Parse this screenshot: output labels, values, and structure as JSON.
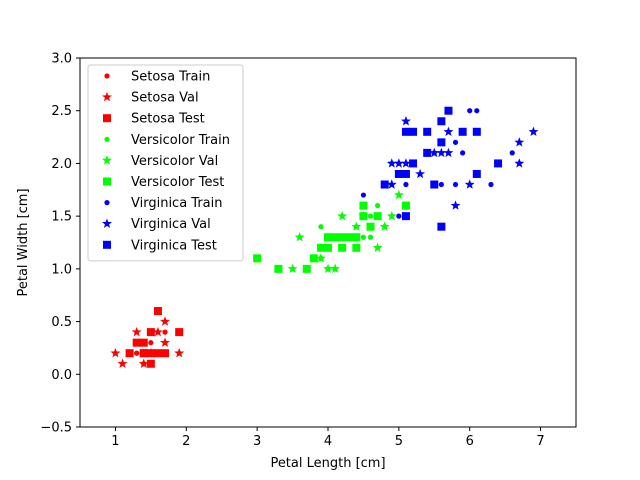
{
  "chart_data": {
    "type": "scatter",
    "title": "",
    "xlabel": "Petal Length [cm]",
    "ylabel": "Petal Width [cm]",
    "xlim": [
      0.5,
      7.5
    ],
    "ylim": [
      -0.5,
      3.0
    ],
    "xticks": [
      1,
      2,
      3,
      4,
      5,
      6,
      7
    ],
    "xtick_labels": [
      "1",
      "2",
      "3",
      "4",
      "5",
      "6",
      "7"
    ],
    "yticks": [
      -0.5,
      0.0,
      0.5,
      1.0,
      1.5,
      2.0,
      2.5,
      3.0
    ],
    "ytick_labels": [
      "−0.5",
      "0.0",
      "0.5",
      "1.0",
      "1.5",
      "2.0",
      "2.5",
      "3.0"
    ],
    "grid": false,
    "legend_position": "top-left",
    "series": [
      {
        "name": "Setosa Train",
        "marker": "circle",
        "color": "#ff0000",
        "points": [
          [
            1.4,
            0.2
          ],
          [
            1.3,
            0.2
          ],
          [
            1.5,
            0.2
          ],
          [
            1.4,
            0.3
          ],
          [
            1.5,
            0.1
          ],
          [
            1.6,
            0.2
          ],
          [
            1.4,
            0.1
          ],
          [
            1.2,
            0.2
          ],
          [
            1.3,
            0.3
          ],
          [
            1.7,
            0.4
          ],
          [
            1.5,
            0.4
          ],
          [
            1.6,
            0.2
          ],
          [
            1.4,
            0.2
          ],
          [
            1.5,
            0.3
          ],
          [
            1.3,
            0.2
          ]
        ]
      },
      {
        "name": "Setosa Val",
        "marker": "star",
        "color": "#ff0000",
        "points": [
          [
            1.0,
            0.2
          ],
          [
            1.1,
            0.1
          ],
          [
            1.3,
            0.4
          ],
          [
            1.4,
            0.1
          ],
          [
            1.7,
            0.5
          ],
          [
            1.7,
            0.3
          ],
          [
            1.9,
            0.2
          ],
          [
            1.6,
            0.4
          ],
          [
            1.5,
            0.2
          ]
        ]
      },
      {
        "name": "Setosa Test",
        "marker": "square",
        "color": "#ff0000",
        "points": [
          [
            1.2,
            0.2
          ],
          [
            1.3,
            0.3
          ],
          [
            1.4,
            0.3
          ],
          [
            1.4,
            0.2
          ],
          [
            1.5,
            0.2
          ],
          [
            1.5,
            0.1
          ],
          [
            1.5,
            0.4
          ],
          [
            1.6,
            0.6
          ],
          [
            1.6,
            0.2
          ],
          [
            1.7,
            0.2
          ],
          [
            1.9,
            0.4
          ],
          [
            1.4,
            0.2
          ]
        ]
      },
      {
        "name": "Versicolor Train",
        "marker": "circle",
        "color": "#00ff00",
        "points": [
          [
            3.9,
            1.4
          ],
          [
            4.0,
            1.3
          ],
          [
            4.5,
            1.5
          ],
          [
            4.6,
            1.5
          ],
          [
            4.7,
            1.6
          ],
          [
            4.7,
            1.5
          ],
          [
            4.5,
            1.3
          ],
          [
            4.1,
            1.3
          ],
          [
            4.6,
            1.3
          ],
          [
            4.8,
            1.4
          ],
          [
            4.4,
            1.4
          ],
          [
            4.3,
            1.3
          ],
          [
            3.9,
            1.1
          ],
          [
            4.0,
            1.0
          ],
          [
            4.1,
            1.0
          ]
        ]
      },
      {
        "name": "Versicolor Val",
        "marker": "star",
        "color": "#00ff00",
        "points": [
          [
            3.5,
            1.0
          ],
          [
            3.6,
            1.3
          ],
          [
            4.0,
            1.0
          ],
          [
            4.1,
            1.0
          ],
          [
            4.2,
            1.5
          ],
          [
            4.4,
            1.4
          ],
          [
            4.7,
            1.2
          ],
          [
            4.8,
            1.4
          ],
          [
            4.9,
            1.5
          ],
          [
            5.0,
            1.7
          ],
          [
            4.5,
            1.5
          ],
          [
            3.9,
            1.1
          ]
        ]
      },
      {
        "name": "Versicolor Test",
        "marker": "square",
        "color": "#00ff00",
        "points": [
          [
            3.0,
            1.1
          ],
          [
            3.3,
            1.0
          ],
          [
            3.7,
            1.0
          ],
          [
            3.8,
            1.1
          ],
          [
            3.9,
            1.2
          ],
          [
            4.0,
            1.2
          ],
          [
            4.0,
            1.3
          ],
          [
            4.1,
            1.3
          ],
          [
            4.2,
            1.3
          ],
          [
            4.2,
            1.2
          ],
          [
            4.3,
            1.3
          ],
          [
            4.4,
            1.2
          ],
          [
            4.4,
            1.3
          ],
          [
            4.5,
            1.5
          ],
          [
            4.5,
            1.6
          ],
          [
            4.6,
            1.4
          ],
          [
            4.7,
            1.5
          ],
          [
            5.1,
            1.6
          ]
        ]
      },
      {
        "name": "Virginica Train",
        "marker": "circle",
        "color": "#0000ff",
        "points": [
          [
            4.5,
            1.7
          ],
          [
            5.0,
            1.5
          ],
          [
            5.1,
            1.8
          ],
          [
            5.6,
            1.8
          ],
          [
            5.8,
            1.8
          ],
          [
            5.8,
            2.2
          ],
          [
            5.9,
            2.1
          ],
          [
            6.0,
            2.5
          ],
          [
            6.1,
            2.5
          ],
          [
            6.3,
            1.8
          ],
          [
            6.6,
            2.1
          ],
          [
            5.5,
            2.1
          ],
          [
            5.4,
            2.3
          ],
          [
            4.8,
            1.8
          ]
        ]
      },
      {
        "name": "Virginica Val",
        "marker": "star",
        "color": "#0000ff",
        "points": [
          [
            4.9,
            2.0
          ],
          [
            5.0,
            2.0
          ],
          [
            5.1,
            2.0
          ],
          [
            5.1,
            2.4
          ],
          [
            5.3,
            1.9
          ],
          [
            5.6,
            2.1
          ],
          [
            5.7,
            2.3
          ],
          [
            5.8,
            1.6
          ],
          [
            6.0,
            1.8
          ],
          [
            6.7,
            2.0
          ],
          [
            6.7,
            2.2
          ],
          [
            6.9,
            2.3
          ],
          [
            5.5,
            2.1
          ],
          [
            5.7,
            2.1
          ],
          [
            4.9,
            1.8
          ]
        ]
      },
      {
        "name": "Virginica Test",
        "marker": "square",
        "color": "#0000ff",
        "points": [
          [
            4.8,
            1.8
          ],
          [
            5.0,
            1.9
          ],
          [
            5.1,
            1.9
          ],
          [
            5.1,
            1.5
          ],
          [
            5.1,
            2.3
          ],
          [
            5.2,
            2.0
          ],
          [
            5.2,
            2.3
          ],
          [
            5.4,
            2.1
          ],
          [
            5.4,
            2.3
          ],
          [
            5.5,
            1.8
          ],
          [
            5.6,
            1.4
          ],
          [
            5.6,
            2.2
          ],
          [
            5.6,
            2.4
          ],
          [
            5.7,
            2.5
          ],
          [
            5.9,
            2.3
          ],
          [
            6.1,
            2.3
          ],
          [
            6.1,
            1.9
          ],
          [
            6.4,
            2.0
          ]
        ]
      }
    ]
  }
}
